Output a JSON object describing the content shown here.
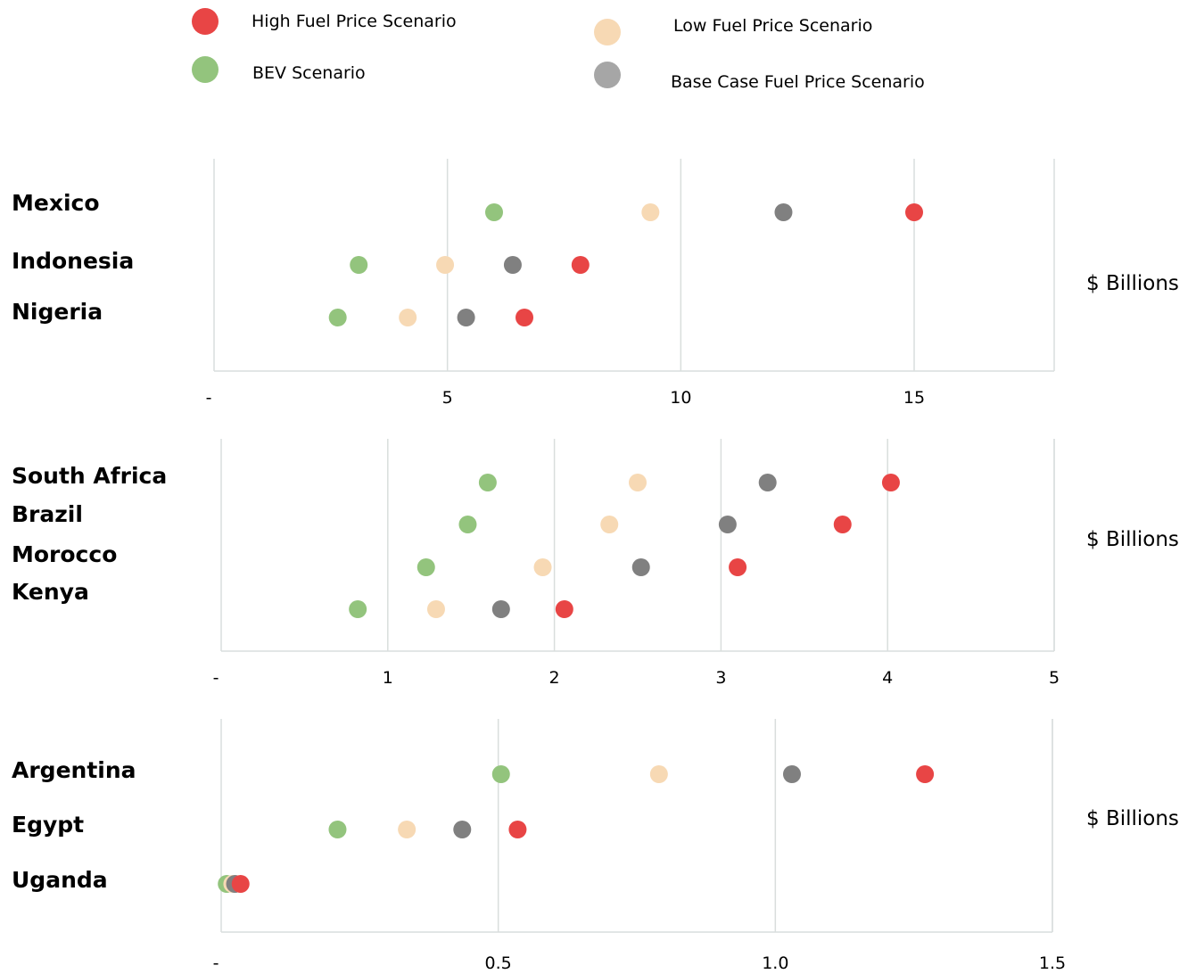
{
  "legend": [
    {
      "name": "High Fuel Price Scenario",
      "color": "#e84545"
    },
    {
      "name": "BEV Scenario",
      "color": "#93c47d"
    },
    {
      "name": "Low Fuel Price Scenario",
      "color": "#f7d9b4"
    },
    {
      "name": "Base Case Fuel Price Scenario",
      "color": "#a6a6a6"
    }
  ],
  "chart_data": [
    {
      "type": "scatter",
      "unit_label": "$ Billions",
      "xlim": [
        0,
        18
      ],
      "ticks": [
        0,
        5,
        10,
        15
      ],
      "tick_labels": [
        "-",
        "5",
        "10",
        "15"
      ],
      "grid": true,
      "countries": [
        "Mexico",
        "Indonesia",
        "Nigeria"
      ],
      "series": [
        {
          "name": "BEV Scenario",
          "color": "#93c47d",
          "values": [
            6.0,
            3.1,
            2.65
          ]
        },
        {
          "name": "Low Fuel Price Scenario",
          "color": "#f7d9b4",
          "values": [
            9.35,
            4.95,
            4.15
          ]
        },
        {
          "name": "Base Case Fuel Price Scenario",
          "color": "#808080",
          "values": [
            12.2,
            6.4,
            5.4
          ]
        },
        {
          "name": "High Fuel Price Scenario",
          "color": "#e84545",
          "values": [
            15.0,
            7.85,
            6.65
          ]
        }
      ]
    },
    {
      "type": "scatter",
      "unit_label": "$ Billions",
      "xlim": [
        0,
        5
      ],
      "ticks": [
        0,
        1,
        2,
        3,
        4,
        5
      ],
      "tick_labels": [
        "-",
        "1",
        "2",
        "3",
        "4",
        "5"
      ],
      "grid": true,
      "countries": [
        "South Africa",
        "Brazil",
        "Morocco",
        "Kenya"
      ],
      "series": [
        {
          "name": "BEV Scenario",
          "color": "#93c47d",
          "values": [
            1.6,
            1.48,
            1.23,
            0.82
          ]
        },
        {
          "name": "Low Fuel Price Scenario",
          "color": "#f7d9b4",
          "values": [
            2.5,
            2.33,
            1.93,
            1.29
          ]
        },
        {
          "name": "Base Case Fuel Price Scenario",
          "color": "#808080",
          "values": [
            3.28,
            3.04,
            2.52,
            1.68
          ]
        },
        {
          "name": "High Fuel Price Scenario",
          "color": "#e84545",
          "values": [
            4.02,
            3.73,
            3.1,
            2.06
          ]
        }
      ]
    },
    {
      "type": "scatter",
      "unit_label": "$ Billions",
      "xlim": [
        0,
        1.5
      ],
      "ticks": [
        0,
        0.5,
        1.0,
        1.5
      ],
      "tick_labels": [
        "-",
        "0.5",
        "1.0",
        "1.5"
      ],
      "grid": true,
      "countries": [
        "Argentina",
        "Egypt",
        "Uganda"
      ],
      "series": [
        {
          "name": "BEV Scenario",
          "color": "#93c47d",
          "values": [
            0.505,
            0.21,
            0.01
          ]
        },
        {
          "name": "Low Fuel Price Scenario",
          "color": "#f7d9b4",
          "values": [
            0.79,
            0.335,
            0.02
          ]
        },
        {
          "name": "Base Case Fuel Price Scenario",
          "color": "#808080",
          "values": [
            1.03,
            0.435,
            0.025
          ]
        },
        {
          "name": "High Fuel Price Scenario",
          "color": "#e84545",
          "values": [
            1.27,
            0.535,
            0.035
          ]
        }
      ]
    }
  ]
}
